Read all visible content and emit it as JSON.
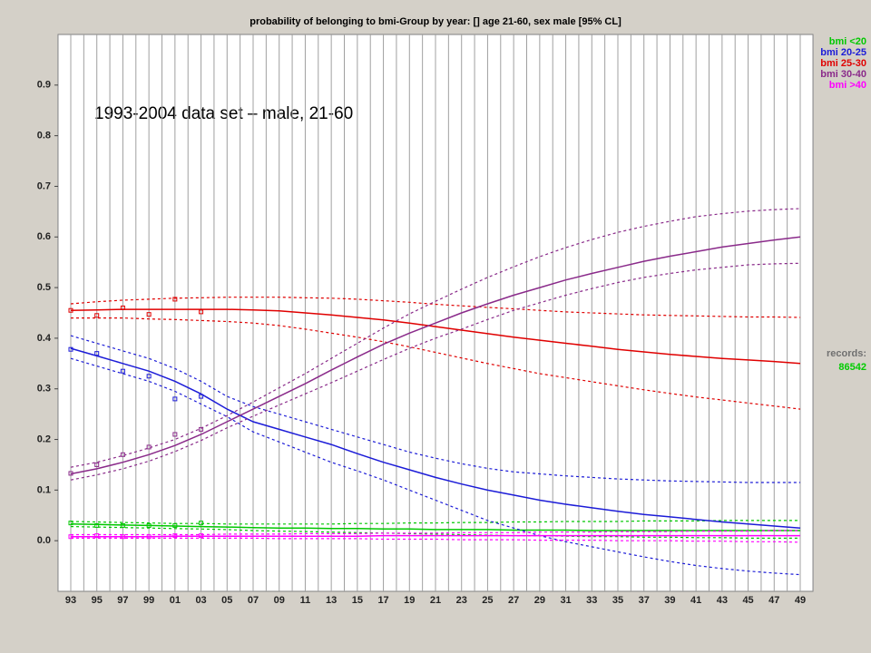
{
  "chart_data": {
    "type": "line",
    "title": "probability of belonging to bmi-Group by year:  []  age 21-60,  sex male  [95% CL]",
    "annotation": "1993-2004 data set – male, 21-60",
    "records_label": "records:",
    "records": 86542,
    "records_color": "#00cc00",
    "categories": [
      "93",
      "95",
      "97",
      "99",
      "01",
      "03",
      "05",
      "07",
      "09",
      "11",
      "13",
      "15",
      "17",
      "19",
      "21",
      "23",
      "25",
      "27",
      "29",
      "31",
      "33",
      "35",
      "37",
      "39",
      "41",
      "43",
      "45",
      "47",
      "49"
    ],
    "ylim": [
      -0.1,
      1.0
    ],
    "yticks": [
      {
        "value": 0,
        "label": "0.0"
      },
      0.1,
      0.2,
      0.3,
      0.4,
      0.5,
      0.6,
      0.7,
      0.8,
      0.9
    ],
    "grid": "x",
    "legend": "top-right",
    "series": [
      {
        "name": "bmi <20",
        "color": "#00c800",
        "values": [
          0.033,
          0.032,
          0.031,
          0.03,
          0.029,
          0.028,
          0.027,
          0.026,
          0.025,
          0.025,
          0.024,
          0.024,
          0.023,
          0.023,
          0.022,
          0.022,
          0.022,
          0.021,
          0.021,
          0.021,
          0.02,
          0.02,
          0.02,
          0.02,
          0.02,
          0.02,
          0.02,
          0.02,
          0.02
        ],
        "upper": [
          0.038,
          0.037,
          0.036,
          0.035,
          0.034,
          0.034,
          0.033,
          0.033,
          0.033,
          0.033,
          0.033,
          0.034,
          0.034,
          0.035,
          0.035,
          0.036,
          0.036,
          0.037,
          0.037,
          0.038,
          0.038,
          0.038,
          0.039,
          0.039,
          0.039,
          0.04,
          0.04,
          0.04,
          0.04
        ],
        "lower": [
          0.028,
          0.027,
          0.026,
          0.025,
          0.024,
          0.023,
          0.022,
          0.02,
          0.019,
          0.018,
          0.017,
          0.016,
          0.015,
          0.014,
          0.013,
          0.012,
          0.011,
          0.01,
          0.01,
          0.009,
          0.008,
          0.008,
          0.007,
          0.007,
          0.006,
          0.006,
          0.005,
          0.005,
          0.005
        ],
        "observed": [
          0.035,
          0.03,
          0.03,
          0.03,
          0.03,
          0.035,
          null,
          null,
          null,
          null,
          null,
          null,
          null,
          null,
          null,
          null,
          null,
          null,
          null,
          null,
          null,
          null,
          null,
          null,
          null,
          null,
          null,
          null,
          null
        ]
      },
      {
        "name": "bmi 20-25",
        "color": "#1c1cd8",
        "values": [
          0.38,
          0.365,
          0.35,
          0.335,
          0.315,
          0.29,
          0.26,
          0.235,
          0.22,
          0.205,
          0.19,
          0.172,
          0.155,
          0.14,
          0.125,
          0.112,
          0.1,
          0.09,
          0.08,
          0.072,
          0.065,
          0.058,
          0.052,
          0.047,
          0.042,
          0.037,
          0.033,
          0.029,
          0.025
        ],
        "upper": [
          0.405,
          0.39,
          0.375,
          0.36,
          0.34,
          0.315,
          0.285,
          0.265,
          0.25,
          0.235,
          0.22,
          0.205,
          0.19,
          0.175,
          0.163,
          0.152,
          0.143,
          0.136,
          0.132,
          0.128,
          0.125,
          0.122,
          0.12,
          0.118,
          0.117,
          0.116,
          0.115,
          0.115,
          0.115
        ],
        "lower": [
          0.36,
          0.345,
          0.33,
          0.315,
          0.295,
          0.27,
          0.245,
          0.215,
          0.195,
          0.175,
          0.155,
          0.138,
          0.12,
          0.1,
          0.08,
          0.06,
          0.04,
          0.025,
          0.01,
          -0.002,
          -0.012,
          -0.022,
          -0.032,
          -0.041,
          -0.049,
          -0.055,
          -0.06,
          -0.064,
          -0.067
        ],
        "observed": [
          0.378,
          0.37,
          0.335,
          0.325,
          0.28,
          0.285,
          null,
          null,
          null,
          null,
          null,
          null,
          null,
          null,
          null,
          null,
          null,
          null,
          null,
          null,
          null,
          null,
          null,
          null,
          null,
          null,
          null,
          null,
          null
        ]
      },
      {
        "name": "bmi 25-30",
        "color": "#e00000",
        "values": [
          0.455,
          0.456,
          0.457,
          0.457,
          0.457,
          0.457,
          0.457,
          0.456,
          0.454,
          0.45,
          0.446,
          0.441,
          0.436,
          0.43,
          0.423,
          0.416,
          0.409,
          0.402,
          0.396,
          0.39,
          0.384,
          0.378,
          0.373,
          0.368,
          0.364,
          0.36,
          0.357,
          0.354,
          0.35
        ],
        "upper": [
          0.468,
          0.472,
          0.475,
          0.477,
          0.479,
          0.48,
          0.481,
          0.481,
          0.481,
          0.48,
          0.479,
          0.477,
          0.474,
          0.471,
          0.467,
          0.464,
          0.461,
          0.458,
          0.455,
          0.452,
          0.45,
          0.448,
          0.446,
          0.445,
          0.444,
          0.443,
          0.442,
          0.442,
          0.441
        ],
        "lower": [
          0.44,
          0.44,
          0.44,
          0.438,
          0.437,
          0.435,
          0.433,
          0.43,
          0.425,
          0.418,
          0.41,
          0.402,
          0.393,
          0.383,
          0.372,
          0.361,
          0.35,
          0.34,
          0.33,
          0.322,
          0.314,
          0.306,
          0.298,
          0.291,
          0.284,
          0.278,
          0.272,
          0.266,
          0.26
        ],
        "observed": [
          0.455,
          0.445,
          0.46,
          0.447,
          0.477,
          0.452,
          null,
          null,
          null,
          null,
          null,
          null,
          null,
          null,
          null,
          null,
          null,
          null,
          null,
          null,
          null,
          null,
          null,
          null,
          null,
          null,
          null,
          null,
          null
        ]
      },
      {
        "name": "bmi 30-40",
        "color": "#8a2a8a",
        "values": [
          0.132,
          0.142,
          0.155,
          0.17,
          0.188,
          0.21,
          0.235,
          0.26,
          0.285,
          0.31,
          0.337,
          0.363,
          0.388,
          0.41,
          0.43,
          0.45,
          0.468,
          0.485,
          0.5,
          0.515,
          0.528,
          0.54,
          0.552,
          0.562,
          0.571,
          0.58,
          0.587,
          0.594,
          0.6
        ],
        "upper": [
          0.145,
          0.155,
          0.168,
          0.183,
          0.2,
          0.222,
          0.247,
          0.274,
          0.302,
          0.33,
          0.36,
          0.39,
          0.42,
          0.448,
          0.473,
          0.497,
          0.52,
          0.541,
          0.561,
          0.579,
          0.595,
          0.609,
          0.621,
          0.631,
          0.64,
          0.646,
          0.651,
          0.654,
          0.656
        ],
        "lower": [
          0.12,
          0.13,
          0.142,
          0.157,
          0.176,
          0.198,
          0.223,
          0.246,
          0.268,
          0.29,
          0.312,
          0.335,
          0.358,
          0.38,
          0.4,
          0.418,
          0.437,
          0.455,
          0.47,
          0.485,
          0.498,
          0.51,
          0.52,
          0.528,
          0.535,
          0.54,
          0.545,
          0.547,
          0.548
        ],
        "observed": [
          0.133,
          0.15,
          0.17,
          0.185,
          0.21,
          0.22,
          null,
          null,
          null,
          null,
          null,
          null,
          null,
          null,
          null,
          null,
          null,
          null,
          null,
          null,
          null,
          null,
          null,
          null,
          null,
          null,
          null,
          null,
          null
        ]
      },
      {
        "name": "bmi >40",
        "color": "#ff00ff",
        "values": [
          0.008,
          0.008,
          0.008,
          0.008,
          0.009,
          0.009,
          0.009,
          0.009,
          0.009,
          0.009,
          0.009,
          0.009,
          0.01,
          0.01,
          0.01,
          0.01,
          0.01,
          0.01,
          0.01,
          0.01,
          0.01,
          0.01,
          0.01,
          0.01,
          0.01,
          0.01,
          0.01,
          0.01,
          0.01
        ],
        "upper": [
          0.012,
          0.012,
          0.012,
          0.012,
          0.012,
          0.012,
          0.013,
          0.013,
          0.013,
          0.014,
          0.014,
          0.014,
          0.015,
          0.015,
          0.015,
          0.016,
          0.016,
          0.016,
          0.017,
          0.017,
          0.017,
          0.018,
          0.018,
          0.018,
          0.019,
          0.019,
          0.019,
          0.02,
          0.02
        ],
        "lower": [
          0.005,
          0.005,
          0.005,
          0.005,
          0.005,
          0.005,
          0.005,
          0.005,
          0.004,
          0.004,
          0.004,
          0.004,
          0.003,
          0.003,
          0.003,
          0.002,
          0.002,
          0.002,
          0.001,
          0.001,
          0.001,
          0,
          0,
          0,
          -0.001,
          -0.001,
          -0.002,
          -0.002,
          -0.003
        ],
        "observed": [
          0.008,
          0.01,
          0.008,
          0.008,
          0.01,
          0.01,
          null,
          null,
          null,
          null,
          null,
          null,
          null,
          null,
          null,
          null,
          null,
          null,
          null,
          null,
          null,
          null,
          null,
          null,
          null,
          null,
          null,
          null,
          null
        ]
      }
    ]
  }
}
